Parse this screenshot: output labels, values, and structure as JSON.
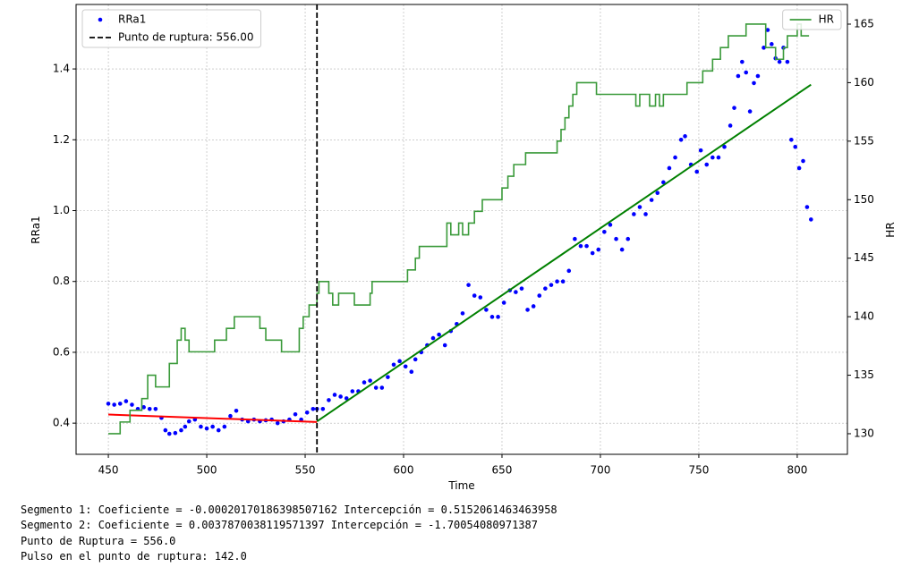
{
  "chart_data": {
    "type": "scatter",
    "xlabel": "Time",
    "ylabel": "RRa1",
    "y2label": "HR",
    "xlim": [
      433.6,
      825.5
    ],
    "ylim": [
      0.312,
      1.582
    ],
    "y2lim": [
      128.24,
      166.68
    ],
    "xticks": [
      450,
      500,
      550,
      600,
      650,
      700,
      750,
      800
    ],
    "yticks": [
      0.4,
      0.6,
      0.8,
      {
        "value": 1,
        "label": "1.0"
      },
      1.2,
      1.4
    ],
    "y2ticks": [
      130,
      135,
      140,
      145,
      150,
      155,
      160,
      165
    ],
    "grid": true,
    "legend_loc": "upper left",
    "legend2_loc": "upper right",
    "series": [
      {
        "name": "RRa1",
        "type": "scatter",
        "color": "#0000ff",
        "x": [
          450,
          453,
          456,
          459,
          462,
          465,
          468,
          471,
          474,
          477,
          479,
          481,
          484,
          487,
          489,
          491,
          494,
          497,
          500,
          503,
          506,
          509,
          512,
          515,
          518,
          521,
          524,
          527,
          530,
          533,
          536,
          539,
          542,
          545,
          548,
          551,
          554,
          556,
          559,
          562,
          565,
          568,
          571,
          574,
          577,
          580,
          583,
          586,
          589,
          592,
          595,
          598,
          601,
          604,
          606,
          609,
          612,
          615,
          618,
          621,
          624,
          627,
          630,
          633,
          636,
          639,
          642,
          645,
          648,
          651,
          654,
          657,
          660,
          663,
          666,
          669,
          672,
          675,
          678,
          681,
          684,
          687,
          690,
          693,
          696,
          699,
          702,
          705,
          708,
          711,
          714,
          717,
          720,
          723,
          726,
          729,
          732,
          735,
          738,
          741,
          743,
          746,
          749,
          751,
          754,
          757,
          760,
          763,
          766,
          768,
          770,
          772,
          774,
          776,
          778,
          780,
          783,
          785,
          787,
          789,
          791,
          793,
          795,
          797,
          799,
          801,
          803,
          805,
          807
        ],
        "values": [
          0.455,
          0.452,
          0.455,
          0.462,
          0.452,
          0.44,
          0.445,
          0.44,
          0.44,
          0.415,
          0.38,
          0.37,
          0.372,
          0.38,
          0.39,
          0.405,
          0.41,
          0.39,
          0.385,
          0.39,
          0.38,
          0.39,
          0.42,
          0.435,
          0.41,
          0.405,
          0.41,
          0.405,
          0.408,
          0.41,
          0.4,
          0.405,
          0.41,
          0.425,
          0.41,
          0.43,
          0.44,
          0.44,
          0.44,
          0.465,
          0.48,
          0.475,
          0.47,
          0.49,
          0.49,
          0.515,
          0.52,
          0.5,
          0.5,
          0.53,
          0.565,
          0.575,
          0.56,
          0.545,
          0.58,
          0.6,
          0.62,
          0.64,
          0.65,
          0.62,
          0.66,
          0.68,
          0.71,
          0.79,
          0.76,
          0.755,
          0.72,
          0.7,
          0.7,
          0.74,
          0.775,
          0.77,
          0.78,
          0.72,
          0.73,
          0.76,
          0.78,
          0.79,
          0.8,
          0.8,
          0.83,
          0.92,
          0.9,
          0.9,
          0.88,
          0.89,
          0.94,
          0.96,
          0.92,
          0.89,
          0.92,
          0.99,
          1.01,
          0.99,
          1.03,
          1.05,
          1.08,
          1.12,
          1.15,
          1.2,
          1.21,
          1.13,
          1.11,
          1.17,
          1.13,
          1.15,
          1.15,
          1.18,
          1.24,
          1.29,
          1.38,
          1.42,
          1.39,
          1.28,
          1.36,
          1.38,
          1.46,
          1.51,
          1.47,
          1.43,
          1.42,
          1.46,
          1.42,
          1.2,
          1.18,
          1.12,
          1.14,
          1.01,
          0.975
        ]
      },
      {
        "type": "line",
        "color": "#ff0000",
        "x": [
          450,
          556
        ],
        "values": [
          0.4244,
          0.4031
        ]
      },
      {
        "type": "line",
        "color": "#008000",
        "x": [
          556,
          807
        ],
        "values": [
          0.405,
          1.3556
        ]
      },
      {
        "name": "HR",
        "type": "line",
        "axis": "y2",
        "color": "#3a9a3a",
        "drawstyle": "steps-post",
        "x": [
          450,
          456,
          461,
          467,
          470,
          474,
          481,
          485,
          487,
          489,
          491,
          504,
          510,
          514,
          527,
          530,
          538,
          547,
          549,
          552,
          556,
          557,
          562,
          564,
          567,
          575,
          583,
          584,
          602,
          606,
          608,
          622,
          624,
          628,
          630,
          633,
          636,
          640,
          650,
          653,
          656,
          662,
          678,
          680,
          682,
          684,
          686,
          688,
          698,
          718,
          720,
          725,
          728,
          730,
          732,
          744,
          752,
          757,
          761,
          765,
          774,
          784,
          789,
          793,
          795,
          800,
          802,
          806
        ],
        "values": [
          130,
          131,
          132,
          133,
          135,
          134,
          136,
          138,
          139,
          138,
          137,
          138,
          139,
          140,
          139,
          138,
          137,
          139,
          140,
          141,
          142,
          143,
          142,
          141,
          142,
          141,
          142,
          143,
          144,
          145,
          146,
          148,
          147,
          148,
          147,
          148,
          149,
          150,
          151,
          152,
          153,
          154,
          155,
          156,
          157,
          158,
          159,
          160,
          159,
          158,
          159,
          158,
          159,
          158,
          159,
          160,
          161,
          162,
          163,
          164,
          165,
          163,
          162,
          163,
          164,
          165,
          164,
          164
        ]
      }
    ],
    "vlines": [
      {
        "name": "Punto de ruptura: 556.00",
        "x": 556,
        "color": "#000000",
        "linestyle": "dashed"
      }
    ]
  },
  "console_output": [
    "Segmento 1: Coeficiente = -0.00020170186398507162 Intercepción = 0.5152061463463958",
    "Segmento 2: Coeficiente = 0.0037870038119571397 Intercepción = -1.70054080971387",
    "Punto de Ruptura = 556.0",
    "Pulso en el punto de ruptura: 142.0"
  ]
}
